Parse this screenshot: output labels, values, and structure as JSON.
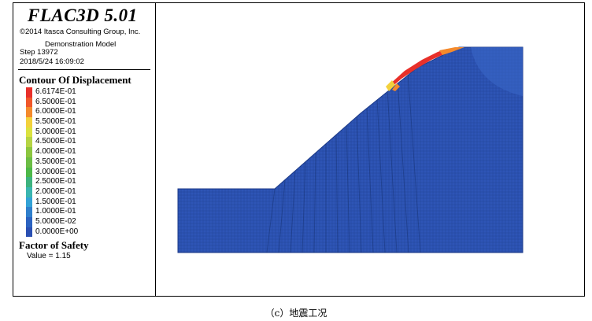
{
  "header": {
    "app_title": "FLAC3D 5.01",
    "copyright": "©2014 Itasca Consulting Group, Inc.",
    "model_name": "Demonstration Model",
    "step": "Step 13972",
    "datetime": "2018/5/24 16:09:02"
  },
  "contour": {
    "title": "Contour Of Displacement",
    "levels": [
      {
        "label": "6.6174E-01",
        "color": "#e8302a"
      },
      {
        "label": "6.5000E-01",
        "color": "#f0572a"
      },
      {
        "label": "6.0000E-01",
        "color": "#f48a2c"
      },
      {
        "label": "5.5000E-01",
        "color": "#f3d13c"
      },
      {
        "label": "5.0000E-01",
        "color": "#dbe23f"
      },
      {
        "label": "4.5000E-01",
        "color": "#b6d444"
      },
      {
        "label": "4.0000E-01",
        "color": "#8cc63f"
      },
      {
        "label": "3.5000E-01",
        "color": "#6cbd45"
      },
      {
        "label": "3.0000E-01",
        "color": "#4db848"
      },
      {
        "label": "2.5000E-01",
        "color": "#3db27e"
      },
      {
        "label": "2.0000E-01",
        "color": "#3ab5b0"
      },
      {
        "label": "1.5000E-01",
        "color": "#33a2d6"
      },
      {
        "label": "1.0000E-01",
        "color": "#2f7fcc"
      },
      {
        "label": "5.0000E-02",
        "color": "#2b62c0"
      },
      {
        "label": "0.0000E+00",
        "color": "#2a4fb2"
      }
    ]
  },
  "safety": {
    "title": "Factor of Safety",
    "value": "Value = 1.15"
  },
  "model_colors": {
    "mesh_fill": "#2e55b6",
    "mesh_line": "#1c3a88",
    "zone_high": "#e8302a",
    "zone_mid": "#f48a2c",
    "zone_low": "#f3d13c"
  },
  "caption": "（c）地震工况"
}
